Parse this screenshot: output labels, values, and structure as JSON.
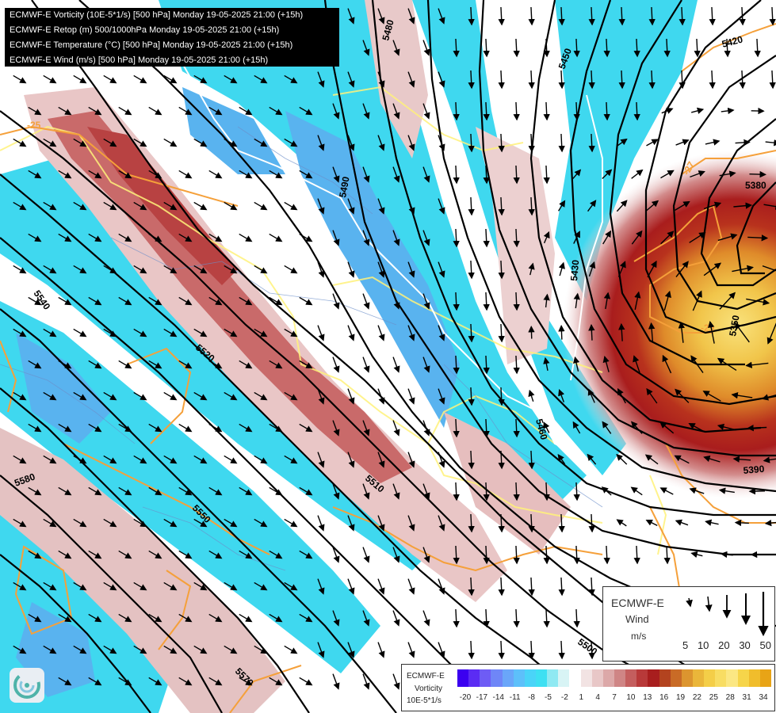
{
  "title_lines": [
    "ECMWF-E Vorticity (10E-5*1/s) [500 hPa] Monday 19-05-2025 21:00 (+15h)",
    "ECMWF-E Retop (m) 500/1000hPa Monday 19-05-2025 21:00 (+15h)",
    "ECMWF-E Temperature (°C) [500 hPa] Monday 19-05-2025 21:00 (+15h)",
    "ECMWF-E Wind (m/s) [500 hPa] Monday 19-05-2025 21:00 (+15h)"
  ],
  "contour_labels": [
    {
      "text": "5480"
    },
    {
      "text": "5450"
    },
    {
      "text": "5420"
    },
    {
      "text": "5490"
    },
    {
      "text": "5380"
    },
    {
      "text": "5430"
    },
    {
      "text": "5350"
    },
    {
      "text": "5540"
    },
    {
      "text": "5520"
    },
    {
      "text": "5460"
    },
    {
      "text": "5390"
    },
    {
      "text": "5510"
    },
    {
      "text": "5580"
    },
    {
      "text": "5550"
    },
    {
      "text": "5500"
    },
    {
      "text": "5570"
    }
  ],
  "temperature_labels": [
    {
      "text": "-25"
    },
    {
      "text": "-29"
    },
    {
      "text": "-27"
    }
  ],
  "wind_legend": {
    "title": "ECMWF-E",
    "variable": "Wind",
    "unit": "m/s",
    "speeds": [
      "5",
      "10",
      "20",
      "30",
      "50"
    ]
  },
  "vorticity_legend": {
    "title": "ECMWF-E",
    "variable": "Vorticity",
    "unit": "10E-5*1/s",
    "ticks": [
      "-20",
      "-17",
      "-14",
      "-11",
      "-8",
      "-5",
      "-2",
      "1",
      "4",
      "7",
      "10",
      "13",
      "16",
      "19",
      "22",
      "25",
      "28",
      "31",
      "34"
    ],
    "colors": [
      "#3b00f0",
      "#5b2cf3",
      "#6e5cf5",
      "#6f86f7",
      "#6aa6f9",
      "#5dc0fa",
      "#4ad4f8",
      "#3ee0f2",
      "#8fe9f2",
      "#d8f4f5",
      "#ffffff",
      "#f2e3e3",
      "#e8c7c7",
      "#dca8a8",
      "#cf8585",
      "#c45e5e",
      "#b83939",
      "#a81e1e",
      "#b3431f",
      "#c96b26",
      "#dc952f",
      "#eab63a",
      "#f4ce48",
      "#f8dd63",
      "#fbe783",
      "#f6d54a",
      "#f0bd2c",
      "#e8a416"
    ]
  },
  "colors": {
    "contour": "#000000",
    "temperature_isotherm": "#f5a03a",
    "zero_isotherm": "#ffffff",
    "border": "#fff27a",
    "cyan": "#3fd8ef",
    "blue": "#59b3ef",
    "red": "#bf4a4a"
  }
}
